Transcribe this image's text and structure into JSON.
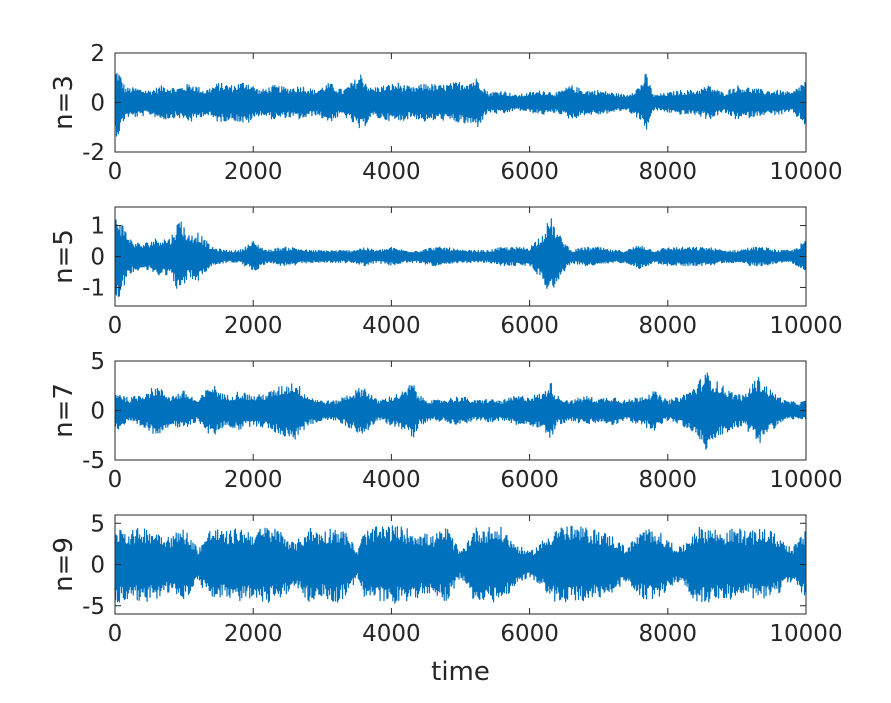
{
  "colors": {
    "series": "#0072BD",
    "axis": "#262626",
    "background": "#ffffff"
  },
  "chart_data": [
    {
      "type": "line",
      "ylabel": "n=3",
      "xlabel": "",
      "xlim": [
        0,
        10000
      ],
      "ylim": [
        -2,
        2
      ],
      "xticks": [
        0,
        2000,
        4000,
        6000,
        8000,
        10000
      ],
      "yticks": [
        -2,
        0,
        2
      ],
      "xtick_labels": [
        "0",
        "2000",
        "4000",
        "6000",
        "8000",
        "10000"
      ],
      "ytick_labels": [
        "-2",
        "0",
        "2"
      ],
      "envelope": {
        "x": [
          0,
          40,
          150,
          300,
          500,
          700,
          900,
          1100,
          1300,
          1500,
          1700,
          1900,
          2100,
          2300,
          2500,
          2700,
          2900,
          3100,
          3300,
          3500,
          3560,
          3700,
          3900,
          4100,
          4300,
          4500,
          4700,
          4900,
          5100,
          5250,
          5400,
          5600,
          5800,
          6000,
          6200,
          6400,
          6600,
          6800,
          7000,
          7200,
          7400,
          7600,
          7680,
          7800,
          8000,
          8200,
          8400,
          8600,
          8800,
          9000,
          9200,
          9400,
          9600,
          9800,
          9980
        ],
        "amplitude": [
          1.3,
          1.4,
          0.6,
          0.6,
          0.5,
          0.7,
          0.6,
          0.8,
          0.5,
          0.8,
          0.7,
          0.9,
          0.5,
          0.7,
          0.6,
          0.7,
          0.5,
          0.8,
          0.5,
          1.0,
          1.2,
          0.6,
          0.7,
          0.8,
          0.6,
          0.8,
          0.7,
          0.8,
          0.9,
          1.0,
          0.4,
          0.5,
          0.3,
          0.4,
          0.5,
          0.4,
          0.7,
          0.5,
          0.5,
          0.4,
          0.3,
          0.7,
          1.2,
          0.3,
          0.4,
          0.5,
          0.5,
          0.7,
          0.4,
          0.7,
          0.6,
          0.5,
          0.5,
          0.4,
          0.9
        ]
      }
    },
    {
      "type": "line",
      "ylabel": "n=5",
      "xlabel": "",
      "xlim": [
        0,
        10000
      ],
      "ylim": [
        -1.6,
        1.6
      ],
      "xticks": [
        0,
        2000,
        4000,
        6000,
        8000,
        10000
      ],
      "yticks": [
        -1,
        0,
        1
      ],
      "xtick_labels": [
        "0",
        "2000",
        "4000",
        "6000",
        "8000",
        "10000"
      ],
      "ytick_labels": [
        "-1",
        "0",
        "1"
      ],
      "envelope": {
        "x": [
          0,
          40,
          120,
          250,
          400,
          600,
          800,
          950,
          1050,
          1200,
          1400,
          1600,
          1800,
          2000,
          2200,
          2400,
          2600,
          2800,
          3000,
          3200,
          3400,
          3600,
          3800,
          4000,
          4200,
          4400,
          4600,
          4800,
          5000,
          5200,
          5400,
          5600,
          5800,
          6000,
          6200,
          6300,
          6400,
          6600,
          6800,
          7000,
          7200,
          7400,
          7600,
          7800,
          8000,
          8200,
          8400,
          8600,
          8800,
          9000,
          9200,
          9400,
          9600,
          9800,
          9980
        ],
        "amplitude": [
          1.3,
          1.4,
          1.0,
          0.5,
          0.4,
          0.6,
          0.6,
          1.3,
          0.7,
          0.8,
          0.3,
          0.2,
          0.2,
          0.5,
          0.2,
          0.3,
          0.3,
          0.2,
          0.2,
          0.2,
          0.2,
          0.3,
          0.2,
          0.3,
          0.2,
          0.2,
          0.3,
          0.3,
          0.2,
          0.2,
          0.2,
          0.3,
          0.3,
          0.3,
          0.8,
          1.3,
          0.8,
          0.2,
          0.3,
          0.3,
          0.2,
          0.2,
          0.4,
          0.2,
          0.3,
          0.3,
          0.3,
          0.3,
          0.2,
          0.2,
          0.3,
          0.3,
          0.2,
          0.2,
          0.5
        ]
      }
    },
    {
      "type": "line",
      "ylabel": "n=7",
      "xlabel": "",
      "xlim": [
        0,
        10000
      ],
      "ylim": [
        -5,
        5
      ],
      "xticks": [
        0,
        2000,
        4000,
        6000,
        8000,
        10000
      ],
      "yticks": [
        -5,
        0,
        5
      ],
      "xtick_labels": [
        "0",
        "2000",
        "4000",
        "6000",
        "8000",
        "10000"
      ],
      "ytick_labels": [
        "-5",
        "0",
        "5"
      ],
      "envelope": {
        "x": [
          0,
          40,
          200,
          400,
          600,
          800,
          1000,
          1200,
          1400,
          1600,
          1800,
          2000,
          2200,
          2400,
          2600,
          2800,
          3000,
          3200,
          3400,
          3600,
          3800,
          4000,
          4200,
          4300,
          4400,
          4600,
          4800,
          5000,
          5200,
          5400,
          5600,
          5800,
          6000,
          6200,
          6300,
          6400,
          6600,
          6800,
          7000,
          7200,
          7400,
          7600,
          7800,
          8000,
          8200,
          8400,
          8550,
          8700,
          8900,
          9100,
          9300,
          9500,
          9700,
          9900,
          9980
        ],
        "amplitude": [
          1.8,
          2.0,
          1.2,
          1.8,
          2.5,
          1.5,
          2.0,
          1.0,
          2.8,
          1.5,
          2.0,
          1.5,
          1.8,
          2.5,
          3.0,
          1.5,
          1.0,
          1.0,
          1.8,
          2.5,
          1.0,
          1.5,
          2.0,
          3.0,
          1.5,
          1.0,
          1.2,
          1.5,
          1.0,
          1.2,
          1.0,
          1.5,
          1.5,
          1.8,
          3.0,
          1.5,
          1.0,
          1.5,
          1.2,
          1.5,
          1.0,
          1.5,
          2.0,
          1.0,
          1.5,
          2.5,
          4.0,
          3.0,
          2.0,
          1.5,
          3.5,
          2.0,
          1.0,
          0.8,
          1.0
        ]
      }
    },
    {
      "type": "line",
      "ylabel": "n=9",
      "xlabel": "time",
      "xlim": [
        0,
        10000
      ],
      "ylim": [
        -6,
        6
      ],
      "xticks": [
        0,
        2000,
        4000,
        6000,
        8000,
        10000
      ],
      "yticks": [
        -5,
        0,
        5
      ],
      "xtick_labels": [
        "0",
        "2000",
        "4000",
        "6000",
        "8000",
        "10000"
      ],
      "ytick_labels": [
        "-5",
        "0",
        "5"
      ],
      "envelope": {
        "x": [
          0,
          100,
          200,
          400,
          600,
          800,
          1000,
          1200,
          1400,
          1600,
          1800,
          2000,
          2200,
          2400,
          2600,
          2800,
          3000,
          3200,
          3400,
          3500,
          3600,
          3800,
          4000,
          4200,
          4400,
          4600,
          4800,
          5000,
          5200,
          5400,
          5600,
          5800,
          6000,
          6200,
          6400,
          6600,
          6800,
          7000,
          7200,
          7400,
          7600,
          7800,
          8000,
          8200,
          8400,
          8600,
          8800,
          9000,
          9200,
          9400,
          9600,
          9800,
          9980
        ],
        "amplitude": [
          4.5,
          4.8,
          4.0,
          4.6,
          4.2,
          3.5,
          4.5,
          2.0,
          4.6,
          4.0,
          4.5,
          4.0,
          4.7,
          4.2,
          2.5,
          4.6,
          4.0,
          4.8,
          3.5,
          1.5,
          4.0,
          4.6,
          4.8,
          4.5,
          4.0,
          3.5,
          4.6,
          1.5,
          4.5,
          4.6,
          4.5,
          2.5,
          1.5,
          3.0,
          4.8,
          4.7,
          4.5,
          4.2,
          3.5,
          2.0,
          4.0,
          4.6,
          3.0,
          2.0,
          4.5,
          4.6,
          4.0,
          4.5,
          4.0,
          4.5,
          3.5,
          2.0,
          4.0
        ]
      }
    }
  ]
}
